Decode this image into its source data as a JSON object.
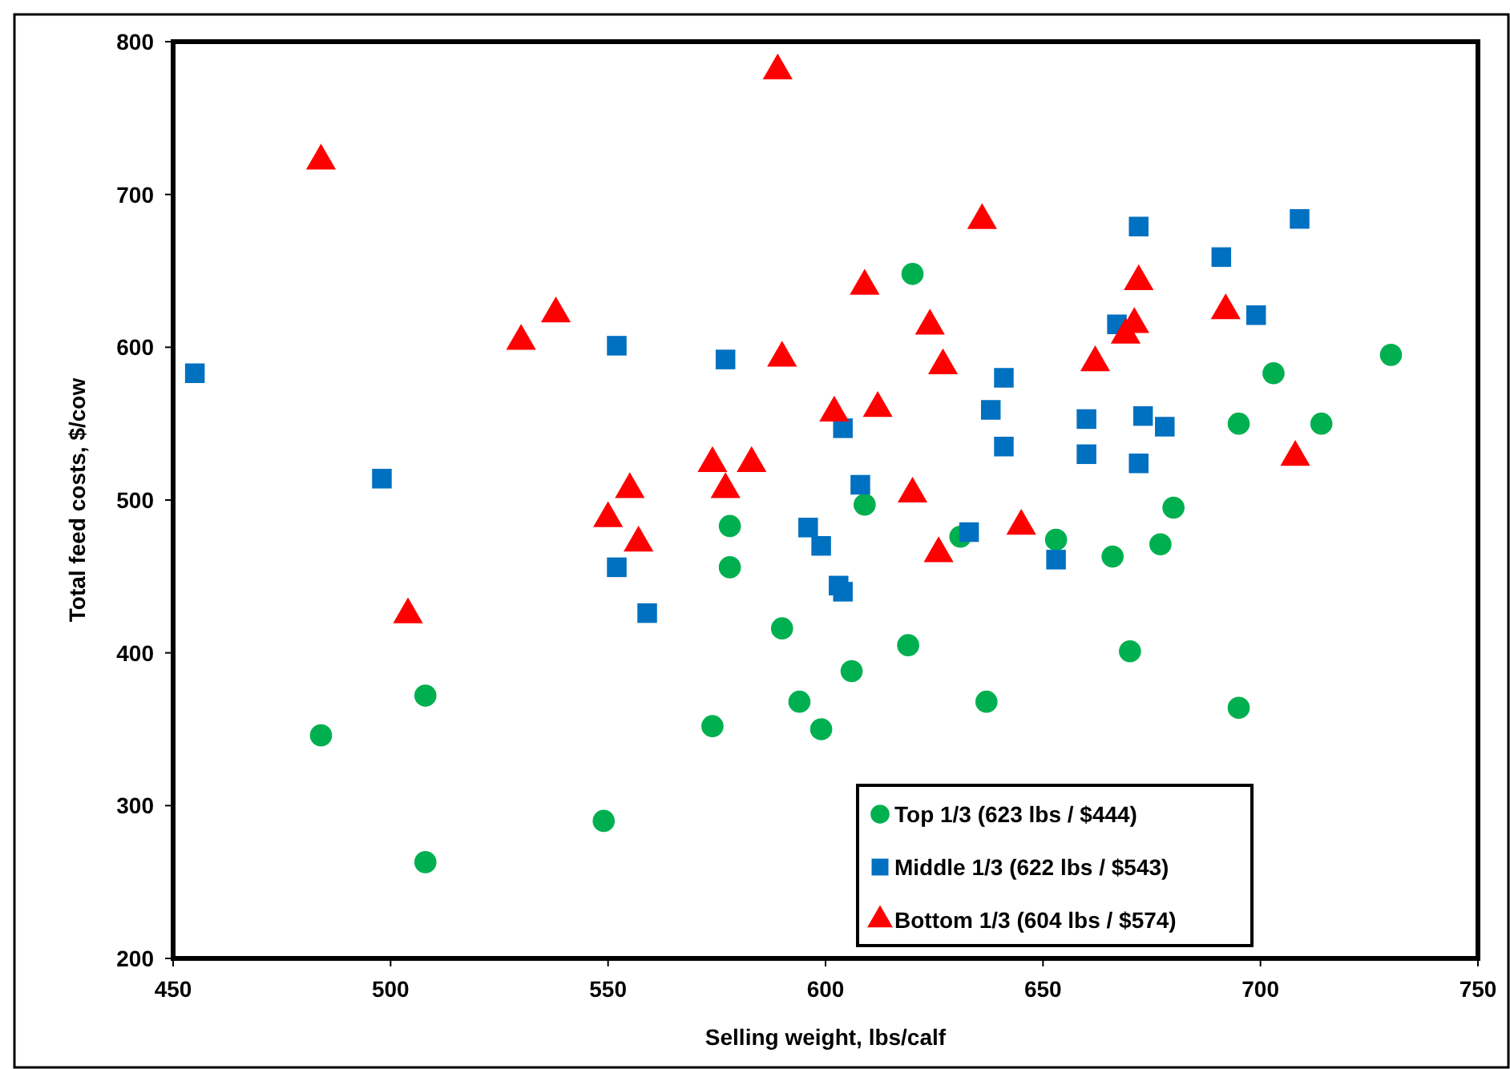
{
  "chart_data": {
    "type": "scatter",
    "xlabel": "Selling weight, lbs/calf",
    "ylabel": "Total feed costs, $/cow",
    "xlim": [
      450,
      750
    ],
    "xticks": [
      450,
      500,
      550,
      600,
      650,
      700,
      750
    ],
    "ylim": [
      200,
      800
    ],
    "yticks": [
      200,
      300,
      400,
      500,
      600,
      700,
      800
    ],
    "grid": false,
    "legend": "bottom",
    "series": [
      {
        "name": "Top 1/3 (623 lbs / $444)",
        "color": "#00b050",
        "marker": "circle",
        "x": [
          484,
          508,
          508,
          549,
          574,
          578,
          578,
          590,
          594,
          599,
          606,
          609,
          620,
          619,
          631,
          637,
          653,
          666,
          670,
          677,
          680,
          695,
          703,
          695,
          714,
          730
        ],
        "values": [
          346,
          372,
          263,
          290,
          352,
          483,
          456,
          416,
          368,
          350,
          388,
          497,
          648,
          405,
          476,
          368,
          474,
          463,
          401,
          471,
          495,
          550,
          583,
          364,
          550,
          595
        ]
      },
      {
        "name": "Middle 1/3 (622 lbs / $543)",
        "color": "#0070c0",
        "marker": "square",
        "x": [
          455,
          498,
          552,
          577,
          552,
          559,
          596,
          599,
          603,
          604,
          608,
          604,
          633,
          638,
          641,
          641,
          653,
          660,
          660,
          667,
          672,
          672,
          673,
          678,
          691,
          699,
          709
        ],
        "values": [
          583,
          514,
          601,
          592,
          456,
          426,
          482,
          470,
          444,
          440,
          510,
          547,
          479,
          559,
          580,
          535,
          461,
          553,
          530,
          615,
          679,
          524,
          555,
          548,
          659,
          621,
          684
        ]
      },
      {
        "name": "Bottom 1/3 (604 lbs / $574)",
        "color": "#ff0000",
        "marker": "triangle",
        "x": [
          589,
          484,
          538,
          530,
          590,
          574,
          583,
          555,
          577,
          550,
          557,
          504,
          636,
          609,
          672,
          624,
          692,
          671,
          669,
          627,
          662,
          602,
          612,
          708,
          620,
          626,
          645
        ],
        "values": [
          781,
          722,
          622,
          604,
          593,
          524,
          524,
          507,
          507,
          488,
          472,
          425,
          683,
          640,
          643,
          614,
          624,
          615,
          608,
          588,
          590,
          557,
          560,
          528,
          504,
          465,
          483
        ]
      }
    ]
  }
}
